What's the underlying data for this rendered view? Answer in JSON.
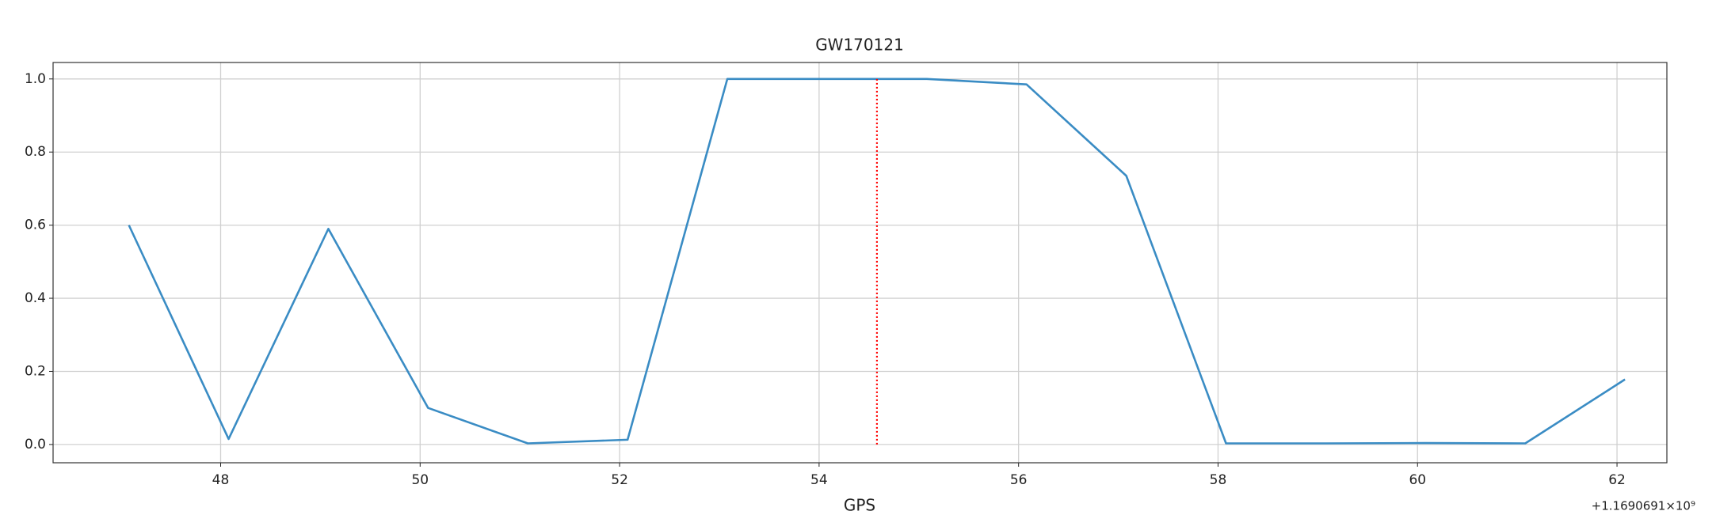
{
  "chart_data": {
    "type": "line",
    "title": "GW170121",
    "xlabel": "GPS",
    "x_offset_label": "+1.1690691×10⁹",
    "x": [
      47.08,
      48.08,
      49.08,
      50.08,
      51.08,
      52.08,
      53.08,
      54.08,
      55.08,
      56.08,
      57.08,
      58.08,
      59.08,
      60.08,
      61.08,
      62.08
    ],
    "series": [
      {
        "color": "#3a8cc4",
        "values": [
          0.6,
          0.015,
          0.59,
          0.1,
          0.003,
          0.013,
          1.0,
          1.0,
          1.0,
          0.985,
          0.735,
          0.003,
          0.003,
          0.004,
          0.003,
          0.178
        ]
      }
    ],
    "vline": {
      "x": 54.58,
      "ymin": 0,
      "ymax": 1,
      "color": "#ff0000"
    },
    "xlim": [
      46.32,
      62.5
    ],
    "ylim": [
      -0.05,
      1.045
    ],
    "xticks": [
      48,
      50,
      52,
      54,
      56,
      58,
      60,
      62
    ],
    "yticks": [
      {
        "value": 0,
        "label": "0.0"
      },
      {
        "value": 0.2,
        "label": "0.2"
      },
      {
        "value": 0.4,
        "label": "0.4"
      },
      {
        "value": 0.6,
        "label": "0.6"
      },
      {
        "value": 0.8,
        "label": "0.8"
      },
      {
        "value": 1,
        "label": "1.0"
      }
    ],
    "grid": true
  }
}
